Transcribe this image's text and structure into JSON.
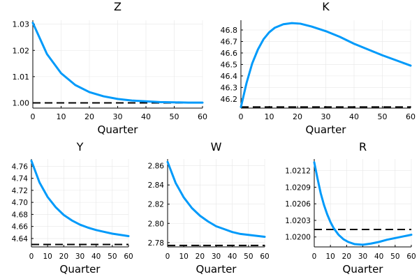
{
  "chart_data": [
    {
      "type": "line",
      "title": "Z",
      "xlabel": "Quarter",
      "xlim": [
        0,
        60
      ],
      "ylim": [
        0.998,
        1.0315
      ],
      "x_ticks": [
        0,
        10,
        20,
        30,
        40,
        50,
        60
      ],
      "y_ticks": [
        "1.00",
        "1.01",
        "1.02",
        "1.03"
      ],
      "y_tick_values": [
        1.0,
        1.01,
        1.02,
        1.03
      ],
      "grid": true,
      "series": [
        {
          "x": [
            0,
            5,
            10,
            15,
            20,
            25,
            30,
            35,
            40,
            45,
            50,
            55,
            60
          ],
          "values": [
            1.0305,
            1.0186,
            1.0113,
            1.0068,
            1.0041,
            1.0025,
            1.0015,
            1.0009,
            1.0006,
            1.0003,
            1.0002,
            1.0001,
            1.0001
          ]
        }
      ],
      "reference_line": 1.0
    },
    {
      "type": "line",
      "title": "K",
      "xlabel": "Quarter",
      "xlim": [
        0,
        60
      ],
      "ylim": [
        46.12,
        46.885
      ],
      "x_ticks": [
        0,
        10,
        20,
        30,
        40,
        50,
        60
      ],
      "y_ticks": [
        "46.2",
        "46.3",
        "46.4",
        "46.5",
        "46.6",
        "46.7",
        "46.8"
      ],
      "y_tick_values": [
        46.2,
        46.3,
        46.4,
        46.5,
        46.6,
        46.7,
        46.8
      ],
      "grid": true,
      "series": [
        {
          "x": [
            0,
            2,
            4,
            6,
            8,
            10,
            12,
            15,
            18,
            21,
            25,
            30,
            35,
            40,
            45,
            50,
            55,
            60
          ],
          "values": [
            46.13,
            46.34,
            46.51,
            46.63,
            46.72,
            46.78,
            46.82,
            46.85,
            46.86,
            46.855,
            46.83,
            46.79,
            46.74,
            46.68,
            46.63,
            46.58,
            46.535,
            46.49
          ]
        }
      ],
      "reference_line": 46.13
    },
    {
      "type": "line",
      "title": "Y",
      "xlabel": "Quarter",
      "xlim": [
        0,
        60
      ],
      "ylim": [
        4.626,
        4.772
      ],
      "x_ticks": [
        0,
        10,
        20,
        30,
        40,
        50,
        60
      ],
      "y_ticks": [
        "4.64",
        "4.66",
        "4.68",
        "4.70",
        "4.72",
        "4.74",
        "4.76"
      ],
      "y_tick_values": [
        4.64,
        4.66,
        4.68,
        4.7,
        4.72,
        4.74,
        4.76
      ],
      "grid": true,
      "series": [
        {
          "x": [
            0,
            5,
            10,
            15,
            20,
            25,
            30,
            35,
            40,
            45,
            50,
            55,
            60
          ],
          "values": [
            4.769,
            4.733,
            4.709,
            4.692,
            4.679,
            4.67,
            4.663,
            4.658,
            4.654,
            4.651,
            4.648,
            4.646,
            4.644
          ]
        }
      ],
      "reference_line": 4.63
    },
    {
      "type": "line",
      "title": "W",
      "xlabel": "Quarter",
      "xlim": [
        0,
        60
      ],
      "ylim": [
        2.7755,
        2.867
      ],
      "x_ticks": [
        0,
        10,
        20,
        30,
        40,
        50,
        60
      ],
      "y_ticks": [
        "2.78",
        "2.80",
        "2.82",
        "2.84",
        "2.86"
      ],
      "y_tick_values": [
        2.78,
        2.8,
        2.82,
        2.84,
        2.86
      ],
      "grid": true,
      "series": [
        {
          "x": [
            0,
            5,
            10,
            15,
            20,
            25,
            30,
            35,
            40,
            45,
            50,
            55,
            60
          ],
          "values": [
            2.864,
            2.842,
            2.827,
            2.816,
            2.808,
            2.802,
            2.797,
            2.794,
            2.791,
            2.789,
            2.788,
            2.787,
            2.786
          ]
        }
      ],
      "reference_line": 2.777
    },
    {
      "type": "line",
      "title": "R",
      "xlabel": "Quarter",
      "xlim": [
        0,
        60
      ],
      "ylim": [
        1.01982,
        1.02141
      ],
      "x_ticks": [
        0,
        10,
        20,
        30,
        40,
        50,
        60
      ],
      "y_ticks": [
        "1.0200",
        "1.0203",
        "1.0206",
        "1.0209",
        "1.0212"
      ],
      "y_tick_values": [
        1.02,
        1.0203,
        1.0206,
        1.0209,
        1.0212
      ],
      "grid": true,
      "series": [
        {
          "x": [
            0,
            2,
            4,
            6,
            8,
            10,
            12,
            15,
            18,
            21,
            25,
            30,
            35,
            40,
            45,
            50,
            55,
            60
          ],
          "values": [
            1.02135,
            1.02106,
            1.02079,
            1.02058,
            1.02041,
            1.02027,
            1.02016,
            1.02004,
            1.01996,
            1.01991,
            1.01987,
            1.01986,
            1.01988,
            1.01991,
            1.01995,
            1.01998,
            1.02001,
            1.02004
          ]
        }
      ],
      "reference_line": 1.020135
    }
  ],
  "colors": {
    "series": "#009AFA",
    "reference": "#000000",
    "grid": "#e6e6e6",
    "axis": "#000000"
  }
}
